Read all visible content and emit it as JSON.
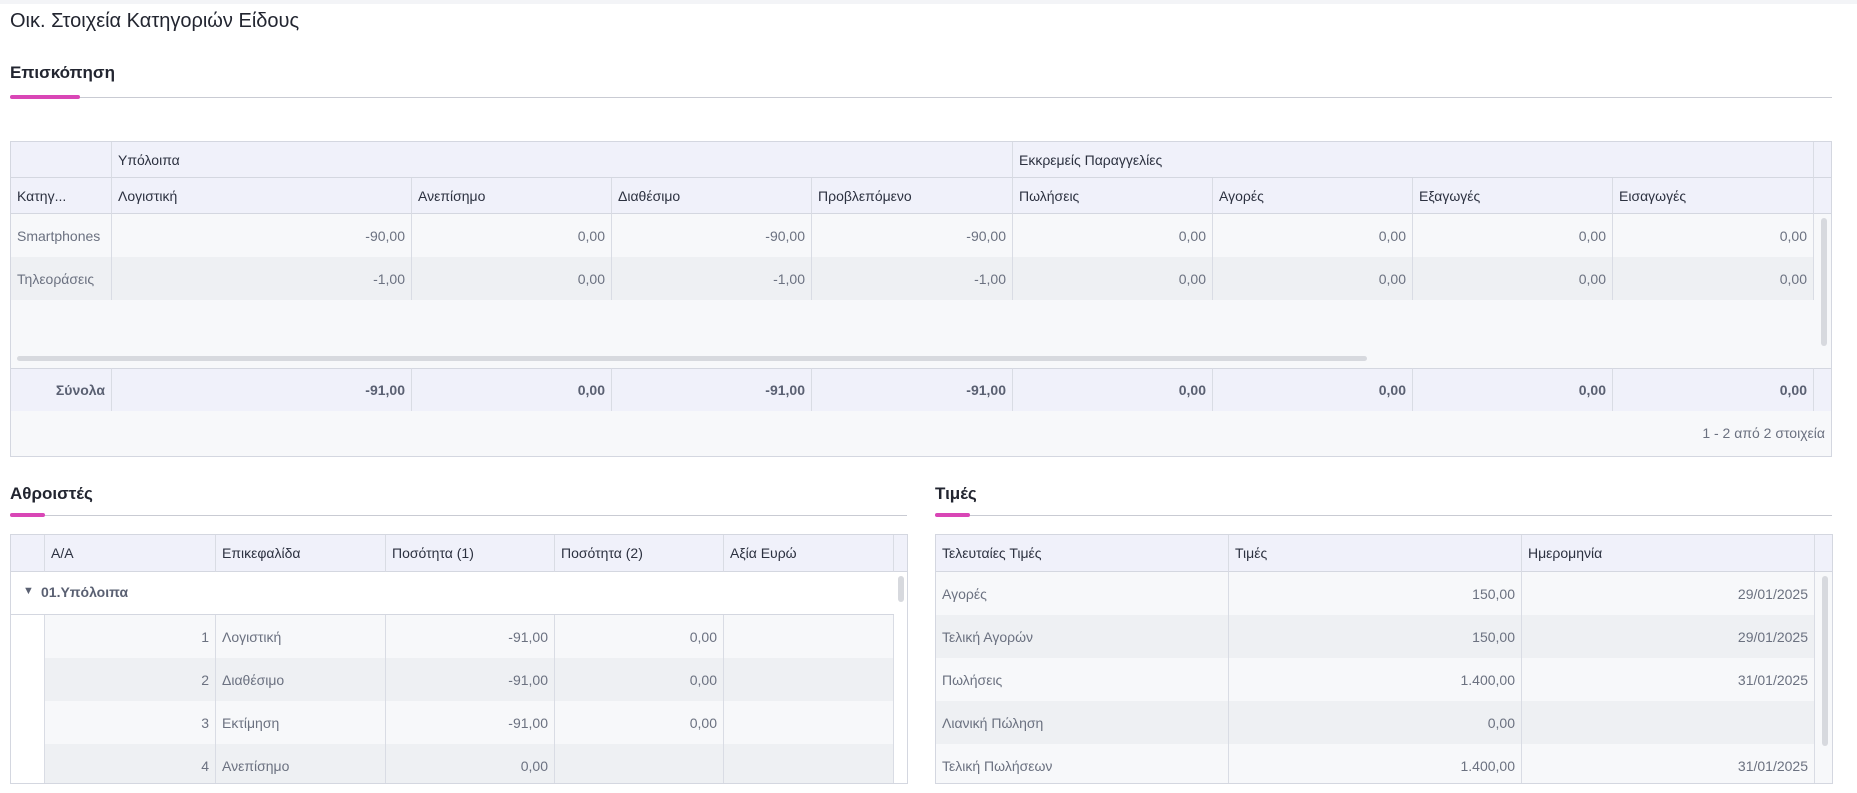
{
  "page": {
    "title": "Οικ. Στοιχεία Κατηγοριών Είδους"
  },
  "overview": {
    "section_title": "Επισκόπηση",
    "group_headers": [
      "Υπόλοιπα",
      "Εκκρεμείς Παραγγελίες"
    ],
    "columns": [
      "Κατηγ...",
      "Λογιστική",
      "Ανεπίσημο",
      "Διαθέσιμο",
      "Προβλεπόμενο",
      "Πωλήσεις",
      "Αγορές",
      "Εξαγωγές",
      "Εισαγωγές"
    ],
    "rows": [
      [
        "Smartphones",
        "-90,00",
        "0,00",
        "-90,00",
        "-90,00",
        "0,00",
        "0,00",
        "0,00",
        "0,00"
      ],
      [
        "Τηλεοράσεις",
        "-1,00",
        "0,00",
        "-1,00",
        "-1,00",
        "0,00",
        "0,00",
        "0,00",
        "0,00"
      ]
    ],
    "totals": [
      "Σύνολα",
      "-91,00",
      "0,00",
      "-91,00",
      "-91,00",
      "0,00",
      "0,00",
      "0,00",
      "0,00"
    ],
    "pager": "1 - 2 από 2 στοιχεία"
  },
  "accumulators": {
    "section_title": "Αθροιστές",
    "columns": [
      "Α/Α",
      "Επικεφαλίδα",
      "Ποσότητα (1)",
      "Ποσότητα (2)",
      "Αξία Ευρώ"
    ],
    "group_label": "01.Υπόλοιπα",
    "rows": [
      [
        "1",
        "Λογιστική",
        "-91,00",
        "0,00",
        ""
      ],
      [
        "2",
        "Διαθέσιμο",
        "-91,00",
        "0,00",
        ""
      ],
      [
        "3",
        "Εκτίμηση",
        "-91,00",
        "0,00",
        ""
      ],
      [
        "4",
        "Ανεπίσημο",
        "0,00",
        "",
        ""
      ]
    ]
  },
  "prices": {
    "section_title": "Τιμές",
    "columns": [
      "Τελευταίες Τιμές",
      "Τιμές",
      "Ημερομηνία"
    ],
    "rows": [
      [
        "Αγορές",
        "150,00",
        "29/01/2025"
      ],
      [
        "Τελική Αγορών",
        "150,00",
        "29/01/2025"
      ],
      [
        "Πωλήσεις",
        "1.400,00",
        "31/01/2025"
      ],
      [
        "Λιανική Πώληση",
        "0,00",
        ""
      ],
      [
        "Τελική Πωλήσεων",
        "1.400,00",
        "31/01/2025"
      ]
    ]
  }
}
